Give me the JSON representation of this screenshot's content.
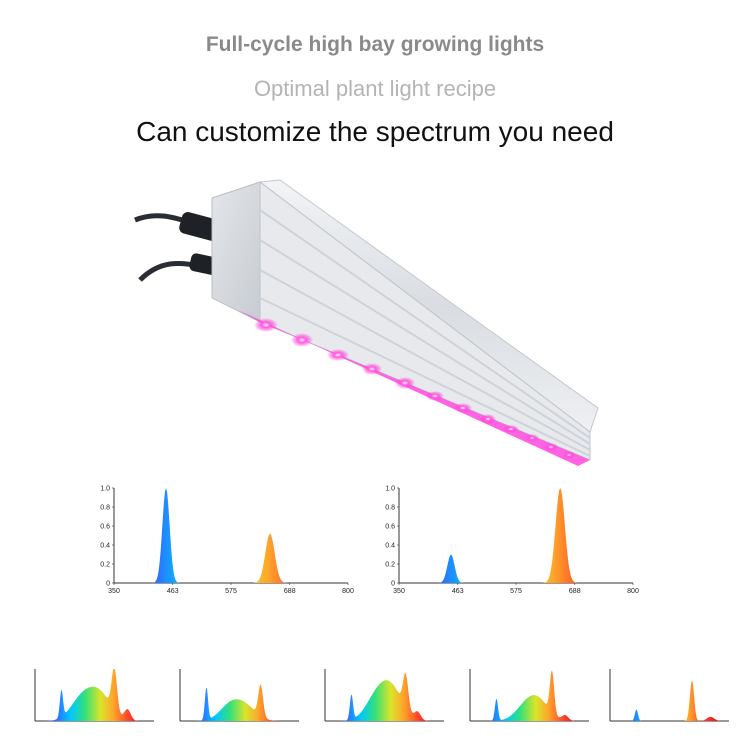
{
  "header": {
    "line1": "Full-cycle high bay growing lights",
    "line2": "Optimal plant light recipe",
    "line3": "Can customize the spectrum you need"
  },
  "colors": {
    "line1": "#8a8a8a",
    "line2": "#b4b4b4",
    "line3": "#111111",
    "led_glow": "#ff2fd6"
  },
  "product": {
    "icon": "led-grow-light-bar-with-cables"
  },
  "chart_data": [
    {
      "type": "area",
      "x_ticks": [
        350,
        463,
        575,
        688,
        800
      ],
      "y_ticks": [
        "0",
        "0.2",
        "0.4",
        "0.6",
        "0.8",
        "1.0"
      ],
      "xlim": [
        350,
        800
      ],
      "ylim": [
        0,
        1
      ],
      "peaks": [
        {
          "center": 450,
          "height": 1.0,
          "width": 7
        },
        {
          "center": 650,
          "height": 0.52,
          "width": 9
        }
      ]
    },
    {
      "type": "area",
      "x_ticks": [
        350,
        463,
        575,
        688,
        800
      ],
      "y_ticks": [
        "0",
        "0.2",
        "0.4",
        "0.6",
        "0.8",
        "1.0"
      ],
      "xlim": [
        350,
        800
      ],
      "ylim": [
        0,
        1
      ],
      "peaks": [
        {
          "center": 450,
          "height": 0.3,
          "width": 7
        },
        {
          "center": 660,
          "height": 1.0,
          "width": 9
        }
      ]
    },
    {
      "type": "area",
      "xlim": [
        350,
        800
      ],
      "ylim": [
        0,
        1
      ],
      "peaks": [
        {
          "center": 450,
          "height": 0.52,
          "width": 6
        },
        {
          "center": 520,
          "height": 0.35,
          "width": 40
        },
        {
          "center": 590,
          "height": 0.55,
          "width": 45
        },
        {
          "center": 650,
          "height": 0.8,
          "width": 10
        },
        {
          "center": 700,
          "height": 0.2,
          "width": 12
        }
      ]
    },
    {
      "type": "area",
      "xlim": [
        350,
        800
      ],
      "ylim": [
        0,
        1
      ],
      "peaks": [
        {
          "center": 450,
          "height": 0.62,
          "width": 6
        },
        {
          "center": 540,
          "height": 0.3,
          "width": 40
        },
        {
          "center": 600,
          "height": 0.25,
          "width": 40
        },
        {
          "center": 655,
          "height": 0.6,
          "width": 9
        }
      ]
    },
    {
      "type": "area",
      "xlim": [
        350,
        800
      ],
      "ylim": [
        0,
        1
      ],
      "peaks": [
        {
          "center": 450,
          "height": 0.48,
          "width": 6
        },
        {
          "center": 540,
          "height": 0.38,
          "width": 40
        },
        {
          "center": 600,
          "height": 0.62,
          "width": 42
        },
        {
          "center": 655,
          "height": 0.65,
          "width": 10
        },
        {
          "center": 700,
          "height": 0.15,
          "width": 12
        }
      ]
    },
    {
      "type": "area",
      "xlim": [
        350,
        800
      ],
      "ylim": [
        0,
        1
      ],
      "peaks": [
        {
          "center": 450,
          "height": 0.42,
          "width": 6
        },
        {
          "center": 560,
          "height": 0.25,
          "width": 40
        },
        {
          "center": 610,
          "height": 0.35,
          "width": 40
        },
        {
          "center": 660,
          "height": 0.8,
          "width": 8
        },
        {
          "center": 710,
          "height": 0.1,
          "width": 12
        }
      ]
    },
    {
      "type": "area",
      "xlim": [
        350,
        800
      ],
      "ylim": [
        0,
        1
      ],
      "peaks": [
        {
          "center": 450,
          "height": 0.22,
          "width": 6
        },
        {
          "center": 660,
          "height": 0.78,
          "width": 8
        },
        {
          "center": 730,
          "height": 0.08,
          "width": 14
        }
      ]
    }
  ]
}
